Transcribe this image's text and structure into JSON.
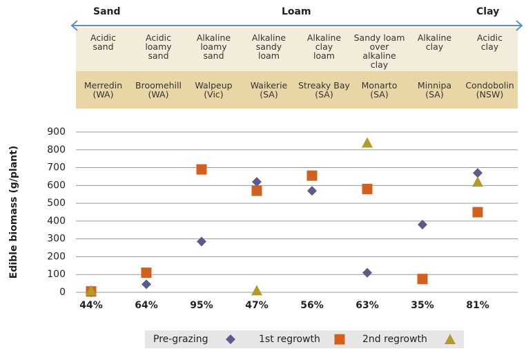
{
  "header": {
    "texture_labels": [
      "Sand",
      "Loam",
      "Clay"
    ],
    "soil_types": [
      "Acidic\nsand",
      "Acidic\nloamy\nsand",
      "Alkaline\nloamy\nsand",
      "Alkaline\nsandy\nloam",
      "Alkaline\nclay\nloam",
      "Sandy loam\nover alkaline\nclay",
      "Alkaline\nclay",
      "Acidic\nclay"
    ],
    "locations": [
      "Merredin\n(WA)",
      "Broomehill\n(WA)",
      "Walpeup\n(Vic)",
      "Waikerie\n(SA)",
      "Streaky Bay\n(SA)",
      "Monarto\n(SA)",
      "Minnipa\n(SA)",
      "Condobolin\n(NSW)"
    ]
  },
  "chart_data": {
    "type": "scatter",
    "y_label": "Edible biomass (g/plant)",
    "categories": [
      "44%",
      "64%",
      "95%",
      "47%",
      "56%",
      "63%",
      "35%",
      "81%"
    ],
    "series": [
      {
        "name": "Pre-grazing",
        "color": "#5c5a8e",
        "marker": "diamond",
        "values": [
          0,
          45,
          285,
          620,
          570,
          110,
          380,
          670
        ]
      },
      {
        "name": "1st regrowth",
        "color": "#d2601f",
        "marker": "square",
        "values": [
          5,
          110,
          690,
          570,
          655,
          580,
          75,
          450
        ]
      },
      {
        "name": "2nd regrowth",
        "color": "#b39b2b",
        "marker": "triangle",
        "values": [
          10,
          null,
          null,
          10,
          null,
          840,
          null,
          620
        ]
      }
    ],
    "ylim": [
      0,
      900
    ],
    "yticks": [
      0,
      100,
      200,
      300,
      400,
      500,
      600,
      700,
      800,
      900
    ],
    "grid": true
  }
}
